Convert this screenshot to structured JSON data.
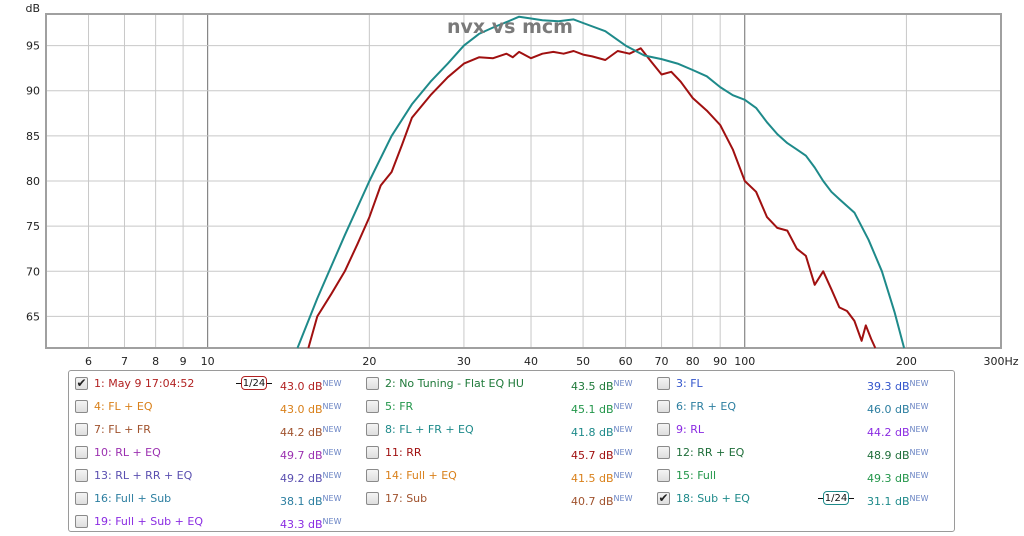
{
  "chart_data": {
    "type": "line",
    "title": "nvx vs mcm",
    "ylabel": "dB",
    "x_unit": "Hz",
    "xscale": "log",
    "xlim": [
      5,
      300
    ],
    "ylim": [
      61.5,
      98.5
    ],
    "x_ticks": [
      6,
      7,
      8,
      9,
      10,
      20,
      30,
      40,
      50,
      60,
      70,
      80,
      90,
      100,
      200,
      300
    ],
    "x_tick_labels": [
      "6",
      "7",
      "8",
      "9",
      "10",
      "20",
      "30",
      "40",
      "50",
      "60",
      "70",
      "80",
      "90",
      "100",
      "200",
      "300Hz"
    ],
    "y_ticks": [
      65,
      70,
      75,
      80,
      85,
      90,
      95
    ],
    "grid": true,
    "series": [
      {
        "name": "1: May 9 17:04:52",
        "color": "#a01010",
        "points": [
          [
            15.4,
            61.5
          ],
          [
            16,
            65
          ],
          [
            17,
            67.5
          ],
          [
            18,
            70
          ],
          [
            19,
            73
          ],
          [
            20,
            76
          ],
          [
            21,
            79.5
          ],
          [
            22,
            81
          ],
          [
            23,
            84
          ],
          [
            24,
            87
          ],
          [
            26,
            89.5
          ],
          [
            28,
            91.5
          ],
          [
            30,
            93
          ],
          [
            32,
            93.7
          ],
          [
            34,
            93.6
          ],
          [
            36,
            94.1
          ],
          [
            37,
            93.7
          ],
          [
            38,
            94.3
          ],
          [
            40,
            93.6
          ],
          [
            42,
            94.1
          ],
          [
            44,
            94.3
          ],
          [
            46,
            94.1
          ],
          [
            48,
            94.4
          ],
          [
            50,
            94
          ],
          [
            52,
            93.8
          ],
          [
            55,
            93.4
          ],
          [
            58,
            94.4
          ],
          [
            61,
            94.1
          ],
          [
            64,
            94.7
          ],
          [
            67,
            93.2
          ],
          [
            70,
            91.8
          ],
          [
            73,
            92.1
          ],
          [
            76,
            91
          ],
          [
            80,
            89.2
          ],
          [
            85,
            87.8
          ],
          [
            90,
            86.2
          ],
          [
            95,
            83.5
          ],
          [
            100,
            80
          ],
          [
            105,
            78.8
          ],
          [
            110,
            76
          ],
          [
            115,
            74.8
          ],
          [
            120,
            74.5
          ],
          [
            125,
            72.5
          ],
          [
            130,
            71.7
          ],
          [
            135,
            68.5
          ],
          [
            140,
            70
          ],
          [
            145,
            68
          ],
          [
            150,
            66
          ],
          [
            155,
            65.6
          ],
          [
            160,
            64.5
          ],
          [
            165,
            62.3
          ],
          [
            168,
            64
          ],
          [
            172,
            62.5
          ],
          [
            175,
            61.5
          ]
        ]
      },
      {
        "name": "18: Sub + EQ",
        "color": "#1e8a8a",
        "points": [
          [
            14.7,
            61.5
          ],
          [
            16,
            67
          ],
          [
            18,
            74
          ],
          [
            20,
            80
          ],
          [
            22,
            85
          ],
          [
            24,
            88.5
          ],
          [
            26,
            91
          ],
          [
            28,
            93
          ],
          [
            30,
            95
          ],
          [
            32,
            96.3
          ],
          [
            34,
            97
          ],
          [
            36,
            97.6
          ],
          [
            38,
            98.2
          ],
          [
            40,
            98
          ],
          [
            42,
            97.8
          ],
          [
            45,
            97.7
          ],
          [
            48,
            97.9
          ],
          [
            50,
            97.5
          ],
          [
            55,
            96.6
          ],
          [
            60,
            95
          ],
          [
            65,
            93.9
          ],
          [
            70,
            93.5
          ],
          [
            75,
            93
          ],
          [
            80,
            92.3
          ],
          [
            85,
            91.6
          ],
          [
            90,
            90.4
          ],
          [
            95,
            89.5
          ],
          [
            100,
            89
          ],
          [
            105,
            88.1
          ],
          [
            110,
            86.5
          ],
          [
            115,
            85.2
          ],
          [
            120,
            84.2
          ],
          [
            125,
            83.5
          ],
          [
            130,
            82.8
          ],
          [
            135,
            81.5
          ],
          [
            140,
            80
          ],
          [
            145,
            78.8
          ],
          [
            150,
            78
          ],
          [
            160,
            76.5
          ],
          [
            170,
            73.5
          ],
          [
            180,
            70
          ],
          [
            190,
            65.5
          ],
          [
            198,
            61.5
          ]
        ]
      }
    ]
  },
  "legend": {
    "new_tag": "NEW",
    "items": [
      {
        "label": "1: May 9 17:04:52",
        "level": "43.0 dB",
        "checked": true,
        "smoothing": "1/24",
        "label_color": "#b22222",
        "level_color": "#b22222"
      },
      {
        "label": "2: No Tuning - Flat EQ HU",
        "level": "43.5 dB",
        "checked": false,
        "smoothing": "",
        "label_color": "#1f7a3a",
        "level_color": "#1f7a3a"
      },
      {
        "label": "3: FL",
        "level": "39.3 dB",
        "checked": false,
        "smoothing": "",
        "label_color": "#3355cc",
        "level_color": "#3355cc"
      },
      {
        "label": "4: FL + EQ",
        "level": "43.0 dB",
        "checked": false,
        "smoothing": "",
        "label_color": "#d9801a",
        "level_color": "#d9801a"
      },
      {
        "label": "5: FR",
        "level": "45.1 dB",
        "checked": false,
        "smoothing": "",
        "label_color": "#22964a",
        "level_color": "#22964a"
      },
      {
        "label": "6: FR + EQ",
        "level": "46.0 dB",
        "checked": false,
        "smoothing": "",
        "label_color": "#2c7ea0",
        "level_color": "#2c7ea0"
      },
      {
        "label": "7: FL + FR",
        "level": "44.2 dB",
        "checked": false,
        "smoothing": "",
        "label_color": "#a0522d",
        "level_color": "#a0522d"
      },
      {
        "label": "8: FL + FR + EQ",
        "level": "41.8 dB",
        "checked": false,
        "smoothing": "",
        "label_color": "#1e8a8a",
        "level_color": "#1e8a8a"
      },
      {
        "label": "9: RL",
        "level": "44.2 dB",
        "checked": false,
        "smoothing": "",
        "label_color": "#8a2be2",
        "level_color": "#8a2be2"
      },
      {
        "label": "10: RL + EQ",
        "level": "49.7 dB",
        "checked": false,
        "smoothing": "",
        "label_color": "#9b30b0",
        "level_color": "#9b30b0"
      },
      {
        "label": "11: RR",
        "level": "45.7 dB",
        "checked": false,
        "smoothing": "",
        "label_color": "#a01010",
        "level_color": "#a01010"
      },
      {
        "label": "12: RR + EQ",
        "level": "48.9 dB",
        "checked": false,
        "smoothing": "",
        "label_color": "#1f6e3a",
        "level_color": "#1f6e3a"
      },
      {
        "label": "13: RL + RR + EQ",
        "level": "49.2 dB",
        "checked": false,
        "smoothing": "",
        "label_color": "#5a4fb0",
        "level_color": "#5a4fb0"
      },
      {
        "label": "14: Full + EQ",
        "level": "41.5 dB",
        "checked": false,
        "smoothing": "",
        "label_color": "#d9801a",
        "level_color": "#d9801a"
      },
      {
        "label": "15: Full",
        "level": "49.3 dB",
        "checked": false,
        "smoothing": "",
        "label_color": "#22964a",
        "level_color": "#22964a"
      },
      {
        "label": "16: Full + Sub",
        "level": "38.1 dB",
        "checked": false,
        "smoothing": "",
        "label_color": "#2c7ea0",
        "level_color": "#2c7ea0"
      },
      {
        "label": "17: Sub",
        "level": "40.7 dB",
        "checked": false,
        "smoothing": "",
        "label_color": "#a0522d",
        "level_color": "#a0522d"
      },
      {
        "label": "18: Sub + EQ",
        "level": "31.1 dB",
        "checked": true,
        "smoothing": "1/24",
        "label_color": "#1e8a8a",
        "level_color": "#1e8a8a"
      },
      {
        "label": "19: Full + Sub + EQ",
        "level": "43.3 dB",
        "checked": false,
        "smoothing": "",
        "label_color": "#8a2be2",
        "level_color": "#8a2be2"
      }
    ]
  },
  "colors": {
    "grid": "#c8c8c8",
    "major_grid": "#6e6e6e",
    "frame": "#a0a0a0",
    "title": "#7a7a7a"
  }
}
